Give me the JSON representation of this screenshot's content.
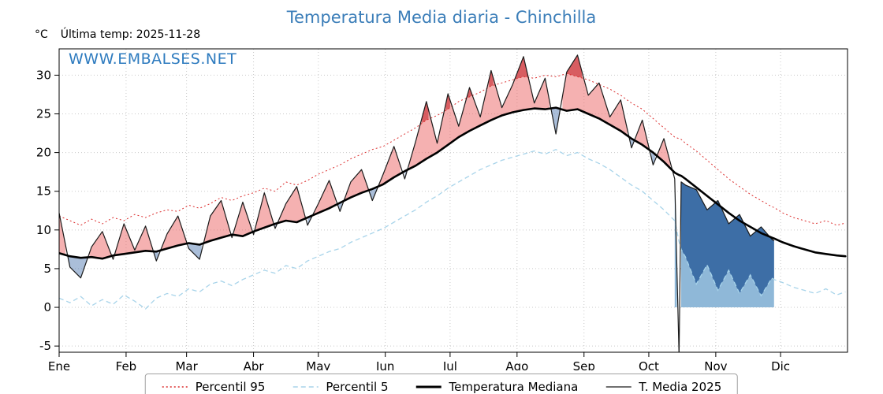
{
  "header": {
    "title": "Temperatura Media diaria - Chinchilla",
    "unit_label": "°C",
    "last_temp_label": "Última temp: 2025-11-28",
    "watermark": "WWW.EMBALSES.NET"
  },
  "legend": {
    "p95": "Percentil 95",
    "p5": "Percentil 5",
    "median": "Temperatura Mediana",
    "t2025": "T. Media 2025"
  },
  "colors": {
    "title": "#3a7db8",
    "watermark": "#2e7bbf",
    "p95_line": "#dc2f2f",
    "p5_line": "#a8d4ea",
    "median_line": "#000000",
    "t2025_line": "#1a1a1a",
    "red_fill": "rgba(236,100,100,0.50)",
    "red_fill_dark": "rgba(198,42,48,0.62)",
    "blue_fill": "rgba(85,125,180,0.50)",
    "block_fill_light": "#8fb8d8",
    "block_fill_dark": "#3d6ea6",
    "grid": "#c9c9c9",
    "axis": "#000000"
  },
  "chart_data": {
    "type": "line",
    "title": "Temperatura Media diaria - Chinchilla",
    "xlabel": "",
    "ylabel": "°C",
    "ylim": [
      -5.8,
      33.4
    ],
    "yticks": [
      -5,
      0,
      5,
      10,
      15,
      20,
      25,
      30
    ],
    "month_labels": [
      "Ene",
      "Feb",
      "Mar",
      "Abr",
      "May",
      "Jun",
      "Jul",
      "Ago",
      "Sep",
      "Oct",
      "Nov",
      "Dic"
    ],
    "month_start_days": [
      1,
      32,
      60,
      91,
      121,
      152,
      182,
      213,
      244,
      274,
      305,
      335
    ],
    "grid": true,
    "legend_position": "bottom",
    "last_data_day": 332,
    "zero_fill_start_day": 286,
    "days": [
      1,
      6,
      11,
      16,
      21,
      26,
      31,
      36,
      41,
      46,
      51,
      56,
      61,
      66,
      71,
      76,
      81,
      86,
      91,
      96,
      101,
      106,
      111,
      116,
      121,
      126,
      131,
      136,
      141,
      146,
      151,
      156,
      161,
      166,
      171,
      176,
      181,
      186,
      191,
      196,
      201,
      206,
      211,
      216,
      221,
      226,
      231,
      236,
      241,
      246,
      251,
      256,
      261,
      266,
      271,
      276,
      281,
      286,
      288,
      289,
      291,
      296,
      301,
      306,
      311,
      316,
      321,
      326,
      331,
      332,
      336,
      341,
      346,
      351,
      356,
      361,
      365
    ],
    "series": [
      {
        "name": "Percentil 95",
        "values": [
          11.8,
          11.2,
          10.6,
          11.4,
          10.8,
          11.6,
          11.2,
          12.0,
          11.6,
          12.2,
          12.6,
          12.4,
          13.2,
          12.8,
          13.4,
          14.2,
          13.8,
          14.4,
          14.8,
          15.4,
          15.0,
          16.2,
          15.8,
          16.4,
          17.2,
          17.8,
          18.4,
          19.2,
          19.8,
          20.4,
          20.8,
          21.6,
          22.4,
          23.2,
          24.2,
          24.8,
          25.6,
          26.6,
          27.2,
          27.8,
          28.6,
          29.0,
          29.4,
          29.8,
          29.6,
          30.0,
          29.8,
          30.2,
          29.8,
          29.4,
          28.8,
          28.2,
          27.4,
          26.4,
          25.6,
          24.4,
          23.2,
          22.0,
          21.8,
          21.7,
          21.2,
          20.2,
          19.0,
          17.8,
          16.6,
          15.6,
          14.6,
          13.8,
          13.0,
          12.9,
          12.2,
          11.6,
          11.2,
          10.8,
          11.2,
          10.6,
          10.9
        ]
      },
      {
        "name": "Percentil 5",
        "values": [
          1.2,
          0.6,
          1.4,
          0.2,
          1.0,
          0.4,
          1.6,
          0.8,
          -0.2,
          1.2,
          1.8,
          1.4,
          2.4,
          2.0,
          3.0,
          3.4,
          2.8,
          3.6,
          4.2,
          4.8,
          4.4,
          5.4,
          5.0,
          6.0,
          6.6,
          7.2,
          7.6,
          8.4,
          9.0,
          9.6,
          10.2,
          11.0,
          11.8,
          12.6,
          13.6,
          14.4,
          15.4,
          16.2,
          17.0,
          17.8,
          18.4,
          19.0,
          19.4,
          19.8,
          20.2,
          19.8,
          20.4,
          19.6,
          20.0,
          19.2,
          18.6,
          17.8,
          16.8,
          15.8,
          15.0,
          13.8,
          12.6,
          11.2,
          8.5,
          7.5,
          6.5,
          3.0,
          5.5,
          2.2,
          4.8,
          1.8,
          4.2,
          1.5,
          3.8,
          3.6,
          3.2,
          2.6,
          2.2,
          1.8,
          2.4,
          1.6,
          2.0
        ]
      },
      {
        "name": "Temperatura Mediana",
        "values": [
          7.0,
          6.6,
          6.4,
          6.5,
          6.3,
          6.7,
          6.9,
          7.1,
          7.3,
          7.2,
          7.6,
          8.0,
          8.3,
          8.1,
          8.6,
          9.0,
          9.4,
          9.2,
          9.8,
          10.3,
          10.8,
          11.2,
          11.0,
          11.6,
          12.2,
          12.8,
          13.5,
          14.2,
          14.8,
          15.3,
          15.9,
          16.8,
          17.6,
          18.3,
          19.2,
          20.0,
          21.0,
          22.0,
          22.8,
          23.5,
          24.2,
          24.8,
          25.2,
          25.5,
          25.7,
          25.6,
          25.8,
          25.4,
          25.6,
          25.0,
          24.4,
          23.6,
          22.8,
          21.8,
          21.0,
          20.0,
          18.8,
          17.4,
          17.1,
          17.0,
          16.6,
          15.5,
          14.4,
          13.3,
          12.2,
          11.2,
          10.4,
          9.6,
          9.0,
          8.9,
          8.4,
          7.9,
          7.5,
          7.1,
          6.9,
          6.7,
          6.6
        ]
      },
      {
        "name": "T. Media 2025",
        "values": [
          12.2,
          5.2,
          3.8,
          7.8,
          9.8,
          6.2,
          10.8,
          7.4,
          10.5,
          6.0,
          9.5,
          11.8,
          7.6,
          6.2,
          11.8,
          13.8,
          9.0,
          13.6,
          9.4,
          14.8,
          10.2,
          13.4,
          15.6,
          10.6,
          13.4,
          16.4,
          12.4,
          16.2,
          17.8,
          13.8,
          17.2,
          20.8,
          16.6,
          21.4,
          26.6,
          21.2,
          27.6,
          23.4,
          28.4,
          24.6,
          30.6,
          25.8,
          28.8,
          32.4,
          26.4,
          29.6,
          22.4,
          30.4,
          32.6,
          27.4,
          29.0,
          24.6,
          26.8,
          20.6,
          24.2,
          18.4,
          21.8,
          16.6,
          -6.2,
          16.2,
          15.8,
          15.2,
          12.6,
          13.8,
          10.8,
          12.0,
          9.2,
          10.4,
          8.8,
          8.6,
          null,
          null,
          null,
          null,
          null,
          null,
          null
        ]
      }
    ]
  }
}
